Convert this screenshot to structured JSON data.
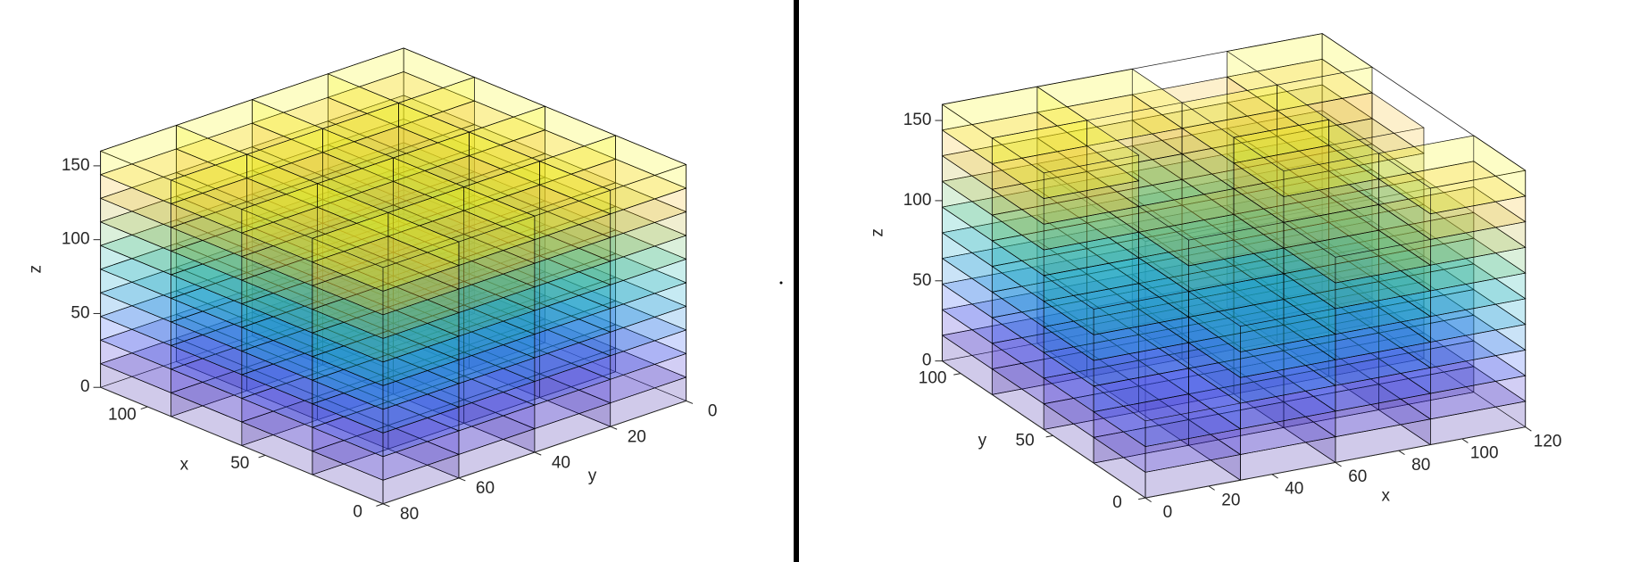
{
  "chart_data": [
    {
      "type": "voxel",
      "x_edges": [
        0,
        30,
        60,
        90,
        120
      ],
      "y_edges": [
        0,
        20,
        40,
        60,
        80
      ],
      "z_edges": [
        0,
        16,
        32,
        48,
        64,
        80,
        96,
        112,
        128,
        144,
        160
      ],
      "heights": [
        [
          10,
          10,
          10,
          10
        ],
        [
          10,
          10,
          10,
          10
        ],
        [
          10,
          10,
          10,
          10
        ],
        [
          10,
          10,
          10,
          10
        ]
      ],
      "colors": [
        "#3e26a8",
        "#4436d8",
        "#3d65f5",
        "#2a8ae3",
        "#1ba8d0",
        "#24bab0",
        "#6cc46c",
        "#c0bc3c",
        "#f5c431",
        "#f9fb14"
      ],
      "xlim": [
        0,
        120
      ],
      "ylim": [
        0,
        80
      ],
      "zlim": [
        0,
        160
      ],
      "xticks": [
        0,
        50,
        100
      ],
      "yticks": [
        0,
        20,
        40,
        60,
        80
      ],
      "zticks": [
        0,
        50,
        100,
        150
      ],
      "xlabel": "x",
      "ylabel": "y",
      "zlabel": "z"
    },
    {
      "type": "voxel",
      "x_edges": [
        0,
        30,
        60,
        90,
        120
      ],
      "y_edges": [
        0,
        28,
        55,
        83,
        110
      ],
      "z_edges": [
        0,
        16,
        32,
        48,
        64,
        80,
        96,
        112,
        128,
        144,
        160
      ],
      "heights": [
        [
          3,
          6,
          8,
          10
        ],
        [
          6,
          8,
          10,
          7
        ],
        [
          10,
          8,
          10,
          9
        ],
        [
          10,
          10,
          9,
          10
        ]
      ],
      "colors": [
        "#3e26a8",
        "#4436d8",
        "#3d65f5",
        "#2a8ae3",
        "#1ba8d0",
        "#24bab0",
        "#6cc46c",
        "#c0bc3c",
        "#f5c431",
        "#f9fb14"
      ],
      "xlim": [
        0,
        120
      ],
      "ylim": [
        0,
        110
      ],
      "zlim": [
        0,
        160
      ],
      "xticks": [
        0,
        20,
        40,
        60,
        80,
        100,
        120
      ],
      "yticks": [
        0,
        50,
        100
      ],
      "zticks": [
        0,
        50,
        100,
        150
      ],
      "xlabel": "x",
      "ylabel": "y",
      "zlabel": "z"
    }
  ]
}
